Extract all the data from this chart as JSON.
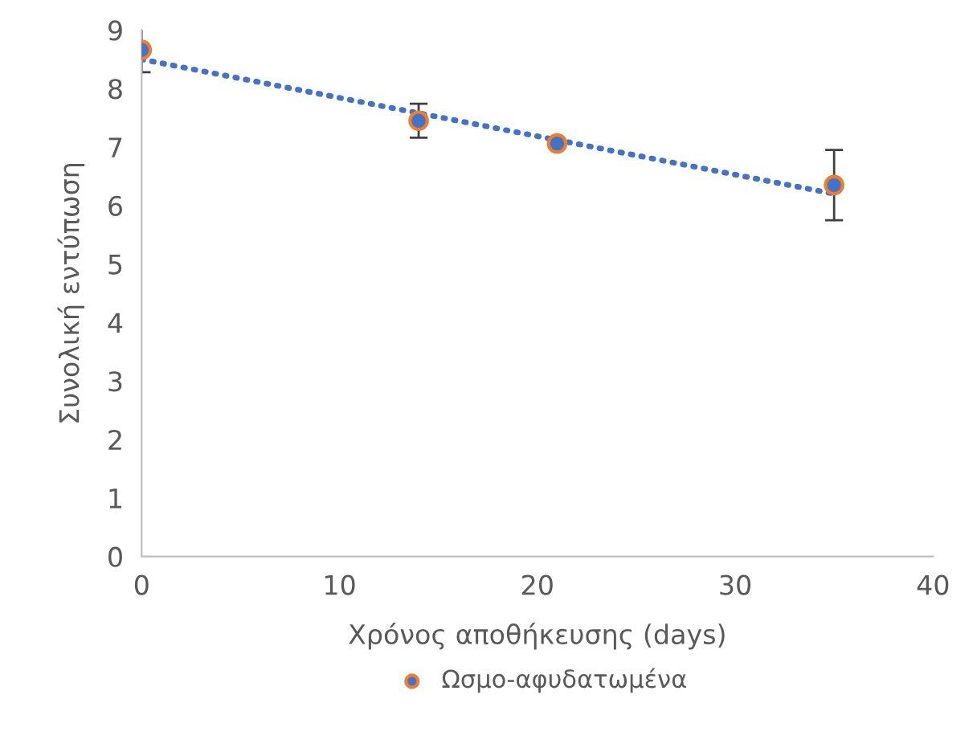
{
  "chart_data": {
    "type": "scatter",
    "xlabel": "Χρόνος αποθήκευσης (days)",
    "ylabel": "Συνολική εντύπωση",
    "xlim": [
      0,
      40
    ],
    "xticks": [
      0,
      10,
      20,
      30,
      40
    ],
    "ylim": [
      0,
      9
    ],
    "yticks": [
      0,
      1,
      2,
      3,
      4,
      5,
      6,
      7,
      8,
      9
    ],
    "grid": false,
    "legend": "bottom",
    "series": [
      {
        "name": "Ωσμο-αφυδατωμένα",
        "marker": "circle",
        "color": "#4472c4",
        "x": [
          0,
          14,
          21,
          35
        ],
        "values": [
          8.66,
          7.45,
          7.06,
          6.35
        ],
        "errors": [
          0.38,
          0.29,
          null,
          0.6
        ]
      },
      {
        "type": "line",
        "color": "#4472c4",
        "line_style": "dotted",
        "x": [
          0,
          35
        ],
        "values": [
          8.5,
          6.2
        ]
      }
    ]
  }
}
